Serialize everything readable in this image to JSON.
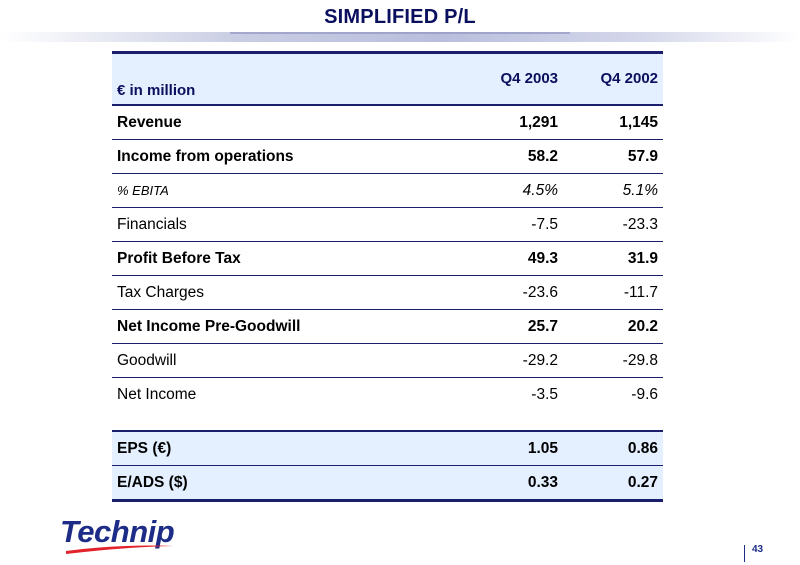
{
  "slide": {
    "title": "SIMPLIFIED P/L",
    "page_number": "43",
    "logo_text": "Technip"
  },
  "table": {
    "header": {
      "label": "€ in million",
      "col1": "Q4 2003",
      "col2": "Q4 2002"
    },
    "rows": [
      {
        "label": "Revenue",
        "col1": "1,291",
        "col2": "1,145"
      },
      {
        "label": "Income from operations",
        "col1": "58.2",
        "col2": "57.9"
      },
      {
        "label": "% EBITA",
        "col1": "4.5%",
        "col2": "5.1%"
      },
      {
        "label": "Financials",
        "col1": "-7.5",
        "col2": "-23.3"
      },
      {
        "label": "Profit Before Tax",
        "col1": "49.3",
        "col2": "31.9"
      },
      {
        "label": "Tax Charges",
        "col1": "-23.6",
        "col2": "-11.7"
      },
      {
        "label": "Net Income Pre-Goodwill",
        "col1": "25.7",
        "col2": "20.2"
      },
      {
        "label": "Goodwill",
        "col1": "-29.2",
        "col2": "-29.8"
      },
      {
        "label": "Net Income",
        "col1": "-3.5",
        "col2": "-9.6"
      },
      {
        "label": "EPS (€)",
        "col1": "1.05",
        "col2": "0.86"
      },
      {
        "label": "E/ADS ($)",
        "col1": "0.33",
        "col2": "0.27"
      }
    ]
  },
  "colors": {
    "navy": "#1a1f6b",
    "header_bg": "#e4efff",
    "logo_blue": "#1d2c86",
    "swoosh_red": "#e2222b"
  }
}
